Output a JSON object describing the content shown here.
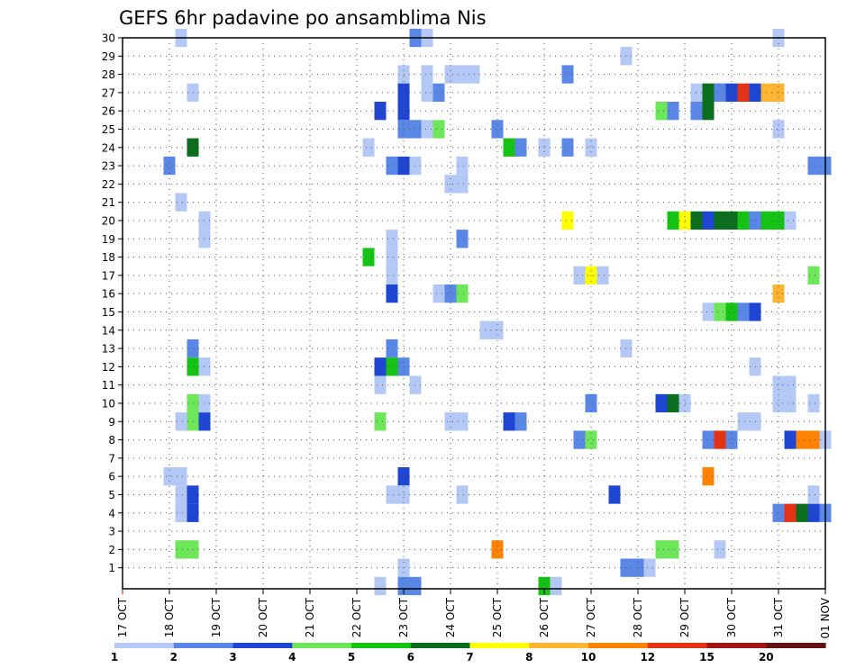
{
  "chart_data": {
    "type": "heatmap",
    "title": "GEFS 6hr padavine po ansamblima Nis",
    "xlabel": "",
    "ylabel": "",
    "x_ticks": [
      "17 OCT",
      "18 OCT",
      "19 OCT",
      "20 OCT",
      "21 OCT",
      "22 OCT",
      "23 OCT",
      "24 OCT",
      "25 OCT",
      "26 OCT",
      "27 OCT",
      "28 OCT",
      "29 OCT",
      "30 OCT",
      "31 OCT",
      "01 NOV"
    ],
    "y_ticks": [
      "1",
      "2",
      "3",
      "4",
      "5",
      "6",
      "7",
      "8",
      "9",
      "10",
      "11",
      "12",
      "13",
      "14",
      "15",
      "16",
      "17",
      "18",
      "19",
      "20",
      "21",
      "22",
      "23",
      "24",
      "25",
      "26",
      "27",
      "28",
      "29",
      "30"
    ],
    "xlim_days": [
      0,
      15
    ],
    "ylim_members": [
      0,
      30
    ],
    "grid": true,
    "colorbar": {
      "labels": [
        "1",
        "2",
        "3",
        "4",
        "5",
        "6",
        "7",
        "8",
        "10",
        "12",
        "15",
        "20"
      ],
      "colors": [
        "#b4c8f5",
        "#5a87e6",
        "#1e46d2",
        "#6ee65a",
        "#14c314",
        "#0a6e1e",
        "#ffff00",
        "#ffb432",
        "#ff8200",
        "#e63214",
        "#a01414",
        "#641414"
      ]
    },
    "cells": [
      {
        "d": 1.25,
        "m": 30,
        "c": 0
      },
      {
        "d": 1.25,
        "m": 6,
        "c": 0
      },
      {
        "d": 1.0,
        "m": 6,
        "c": 0
      },
      {
        "d": 1.0,
        "m": 23,
        "c": 1
      },
      {
        "d": 1.25,
        "m": 5,
        "c": 0
      },
      {
        "d": 1.25,
        "m": 4,
        "c": 0
      },
      {
        "d": 1.5,
        "m": 5,
        "c": 2
      },
      {
        "d": 1.5,
        "m": 4,
        "c": 2
      },
      {
        "d": 1.25,
        "m": 2,
        "c": 3
      },
      {
        "d": 1.5,
        "m": 2,
        "c": 3
      },
      {
        "d": 1.25,
        "m": 9,
        "c": 0
      },
      {
        "d": 1.5,
        "m": 9,
        "c": 3
      },
      {
        "d": 1.75,
        "m": 9,
        "c": 2
      },
      {
        "d": 1.5,
        "m": 10,
        "c": 3
      },
      {
        "d": 1.75,
        "m": 10,
        "c": 0
      },
      {
        "d": 1.5,
        "m": 12,
        "c": 4
      },
      {
        "d": 1.75,
        "m": 12,
        "c": 0
      },
      {
        "d": 1.5,
        "m": 13,
        "c": 1
      },
      {
        "d": 1.25,
        "m": 21,
        "c": 0
      },
      {
        "d": 1.75,
        "m": 20,
        "c": 0
      },
      {
        "d": 1.75,
        "m": 19,
        "c": 0
      },
      {
        "d": 1.5,
        "m": 24,
        "c": 5
      },
      {
        "d": 1.5,
        "m": 27,
        "c": 0
      },
      {
        "d": 5.25,
        "m": 24,
        "c": 0
      },
      {
        "d": 5.25,
        "m": 18,
        "c": 4
      },
      {
        "d": 5.5,
        "m": 26,
        "c": 2
      },
      {
        "d": 5.5,
        "m": 12,
        "c": 2
      },
      {
        "d": 5.5,
        "m": 11,
        "c": 0
      },
      {
        "d": 5.5,
        "m": 9,
        "c": 3
      },
      {
        "d": 5.5,
        "m": 0,
        "c": 0
      },
      {
        "d": 5.75,
        "m": 23,
        "c": 1
      },
      {
        "d": 5.75,
        "m": 19,
        "c": 0
      },
      {
        "d": 5.75,
        "m": 18,
        "c": 0
      },
      {
        "d": 5.75,
        "m": 17,
        "c": 0
      },
      {
        "d": 5.75,
        "m": 16,
        "c": 2
      },
      {
        "d": 5.75,
        "m": 13,
        "c": 1
      },
      {
        "d": 5.75,
        "m": 12,
        "c": 4
      },
      {
        "d": 5.75,
        "m": 5,
        "c": 0
      },
      {
        "d": 6.0,
        "m": 28,
        "c": 0
      },
      {
        "d": 6.0,
        "m": 27,
        "c": 2
      },
      {
        "d": 6.0,
        "m": 26,
        "c": 2
      },
      {
        "d": 6.0,
        "m": 25,
        "c": 1
      },
      {
        "d": 6.0,
        "m": 23,
        "c": 2
      },
      {
        "d": 6.0,
        "m": 12,
        "c": 1
      },
      {
        "d": 6.0,
        "m": 6,
        "c": 2
      },
      {
        "d": 6.0,
        "m": 5,
        "c": 0
      },
      {
        "d": 6.0,
        "m": 1,
        "c": 0
      },
      {
        "d": 6.0,
        "m": 0,
        "c": 1
      },
      {
        "d": 6.25,
        "m": 30,
        "c": 1
      },
      {
        "d": 6.25,
        "m": 25,
        "c": 1
      },
      {
        "d": 6.25,
        "m": 23,
        "c": 0
      },
      {
        "d": 6.25,
        "m": 11,
        "c": 0
      },
      {
        "d": 6.25,
        "m": 0,
        "c": 1
      },
      {
        "d": 6.5,
        "m": 30,
        "c": 0
      },
      {
        "d": 6.5,
        "m": 28,
        "c": 0
      },
      {
        "d": 6.5,
        "m": 27,
        "c": 0
      },
      {
        "d": 6.5,
        "m": 25,
        "c": 0
      },
      {
        "d": 6.75,
        "m": 27,
        "c": 1
      },
      {
        "d": 6.75,
        "m": 25,
        "c": 3
      },
      {
        "d": 6.75,
        "m": 16,
        "c": 0
      },
      {
        "d": 7.0,
        "m": 28,
        "c": 0
      },
      {
        "d": 7.0,
        "m": 22,
        "c": 0
      },
      {
        "d": 7.0,
        "m": 16,
        "c": 1
      },
      {
        "d": 7.0,
        "m": 9,
        "c": 0
      },
      {
        "d": 7.25,
        "m": 28,
        "c": 0
      },
      {
        "d": 7.25,
        "m": 23,
        "c": 0
      },
      {
        "d": 7.25,
        "m": 22,
        "c": 0
      },
      {
        "d": 7.25,
        "m": 19,
        "c": 1
      },
      {
        "d": 7.25,
        "m": 16,
        "c": 3
      },
      {
        "d": 7.25,
        "m": 9,
        "c": 0
      },
      {
        "d": 7.25,
        "m": 5,
        "c": 0
      },
      {
        "d": 7.5,
        "m": 28,
        "c": 0
      },
      {
        "d": 7.75,
        "m": 14,
        "c": 0
      },
      {
        "d": 8.0,
        "m": 25,
        "c": 1
      },
      {
        "d": 8.0,
        "m": 14,
        "c": 0
      },
      {
        "d": 8.0,
        "m": 2,
        "c": 8
      },
      {
        "d": 8.25,
        "m": 24,
        "c": 4
      },
      {
        "d": 8.25,
        "m": 9,
        "c": 2
      },
      {
        "d": 8.5,
        "m": 24,
        "c": 1
      },
      {
        "d": 8.5,
        "m": 9,
        "c": 1
      },
      {
        "d": 9.0,
        "m": 24,
        "c": 0
      },
      {
        "d": 9.0,
        "m": 0,
        "c": 4
      },
      {
        "d": 9.25,
        "m": 0,
        "c": 0
      },
      {
        "d": 9.5,
        "m": 28,
        "c": 1
      },
      {
        "d": 9.5,
        "m": 24,
        "c": 1
      },
      {
        "d": 9.5,
        "m": 20,
        "c": 6
      },
      {
        "d": 9.75,
        "m": 17,
        "c": 0
      },
      {
        "d": 9.75,
        "m": 8,
        "c": 1
      },
      {
        "d": 10.0,
        "m": 24,
        "c": 0
      },
      {
        "d": 10.0,
        "m": 17,
        "c": 6
      },
      {
        "d": 10.0,
        "m": 10,
        "c": 1
      },
      {
        "d": 10.0,
        "m": 8,
        "c": 3
      },
      {
        "d": 10.25,
        "m": 17,
        "c": 0
      },
      {
        "d": 10.5,
        "m": 5,
        "c": 2
      },
      {
        "d": 10.75,
        "m": 29,
        "c": 0
      },
      {
        "d": 10.75,
        "m": 13,
        "c": 0
      },
      {
        "d": 10.75,
        "m": 1,
        "c": 1
      },
      {
        "d": 11.0,
        "m": 1,
        "c": 1
      },
      {
        "d": 11.25,
        "m": 1,
        "c": 0
      },
      {
        "d": 11.5,
        "m": 26,
        "c": 3
      },
      {
        "d": 11.5,
        "m": 10,
        "c": 2
      },
      {
        "d": 11.75,
        "m": 26,
        "c": 1
      },
      {
        "d": 11.75,
        "m": 20,
        "c": 4
      },
      {
        "d": 11.75,
        "m": 10,
        "c": 5
      },
      {
        "d": 11.5,
        "m": 2,
        "c": 3
      },
      {
        "d": 11.75,
        "m": 2,
        "c": 3
      },
      {
        "d": 12.0,
        "m": 20,
        "c": 6
      },
      {
        "d": 12.0,
        "m": 10,
        "c": 0
      },
      {
        "d": 12.25,
        "m": 27,
        "c": 0
      },
      {
        "d": 12.25,
        "m": 26,
        "c": 1
      },
      {
        "d": 12.25,
        "m": 20,
        "c": 5
      },
      {
        "d": 12.5,
        "m": 27,
        "c": 5
      },
      {
        "d": 12.5,
        "m": 26,
        "c": 5
      },
      {
        "d": 12.5,
        "m": 20,
        "c": 2
      },
      {
        "d": 12.5,
        "m": 15,
        "c": 0
      },
      {
        "d": 12.5,
        "m": 8,
        "c": 1
      },
      {
        "d": 12.5,
        "m": 6,
        "c": 8
      },
      {
        "d": 12.75,
        "m": 27,
        "c": 1
      },
      {
        "d": 12.75,
        "m": 20,
        "c": 5
      },
      {
        "d": 12.75,
        "m": 15,
        "c": 3
      },
      {
        "d": 12.75,
        "m": 8,
        "c": 9
      },
      {
        "d": 12.75,
        "m": 2,
        "c": 0
      },
      {
        "d": 13.0,
        "m": 27,
        "c": 2
      },
      {
        "d": 13.0,
        "m": 20,
        "c": 5
      },
      {
        "d": 13.0,
        "m": 15,
        "c": 4
      },
      {
        "d": 13.0,
        "m": 8,
        "c": 1
      },
      {
        "d": 13.25,
        "m": 27,
        "c": 9
      },
      {
        "d": 13.25,
        "m": 20,
        "c": 4
      },
      {
        "d": 13.25,
        "m": 15,
        "c": 1
      },
      {
        "d": 13.5,
        "m": 27,
        "c": 2
      },
      {
        "d": 13.5,
        "m": 20,
        "c": 1
      },
      {
        "d": 13.5,
        "m": 15,
        "c": 2
      },
      {
        "d": 13.25,
        "m": 9,
        "c": 0
      },
      {
        "d": 13.5,
        "m": 9,
        "c": 0
      },
      {
        "d": 13.5,
        "m": 12,
        "c": 0
      },
      {
        "d": 13.75,
        "m": 27,
        "c": 7
      },
      {
        "d": 13.75,
        "m": 20,
        "c": 4
      },
      {
        "d": 14.0,
        "m": 27,
        "c": 7
      },
      {
        "d": 14.0,
        "m": 30,
        "c": 0
      },
      {
        "d": 14.0,
        "m": 25,
        "c": 0
      },
      {
        "d": 14.0,
        "m": 20,
        "c": 4
      },
      {
        "d": 14.0,
        "m": 16,
        "c": 7
      },
      {
        "d": 14.0,
        "m": 11,
        "c": 0
      },
      {
        "d": 14.0,
        "m": 10,
        "c": 0
      },
      {
        "d": 14.0,
        "m": 4,
        "c": 1
      },
      {
        "d": 14.25,
        "m": 20,
        "c": 0
      },
      {
        "d": 14.25,
        "m": 11,
        "c": 0
      },
      {
        "d": 14.25,
        "m": 10,
        "c": 0
      },
      {
        "d": 14.25,
        "m": 8,
        "c": 2
      },
      {
        "d": 14.25,
        "m": 4,
        "c": 9
      },
      {
        "d": 14.5,
        "m": 8,
        "c": 8
      },
      {
        "d": 14.5,
        "m": 4,
        "c": 5
      },
      {
        "d": 14.75,
        "m": 8,
        "c": 8
      },
      {
        "d": 14.75,
        "m": 4,
        "c": 2
      },
      {
        "d": 14.75,
        "m": 17,
        "c": 3
      },
      {
        "d": 14.75,
        "m": 10,
        "c": 0
      },
      {
        "d": 14.75,
        "m": 5,
        "c": 0
      },
      {
        "d": 14.75,
        "m": 23,
        "c": 1
      },
      {
        "d": 15.0,
        "m": 23,
        "c": 1
      },
      {
        "d": 15.0,
        "m": 8,
        "c": 0
      },
      {
        "d": 15.0,
        "m": 4,
        "c": 1
      },
      {
        "d": 12.75,
        "m": 27,
        "c": 1
      }
    ]
  }
}
